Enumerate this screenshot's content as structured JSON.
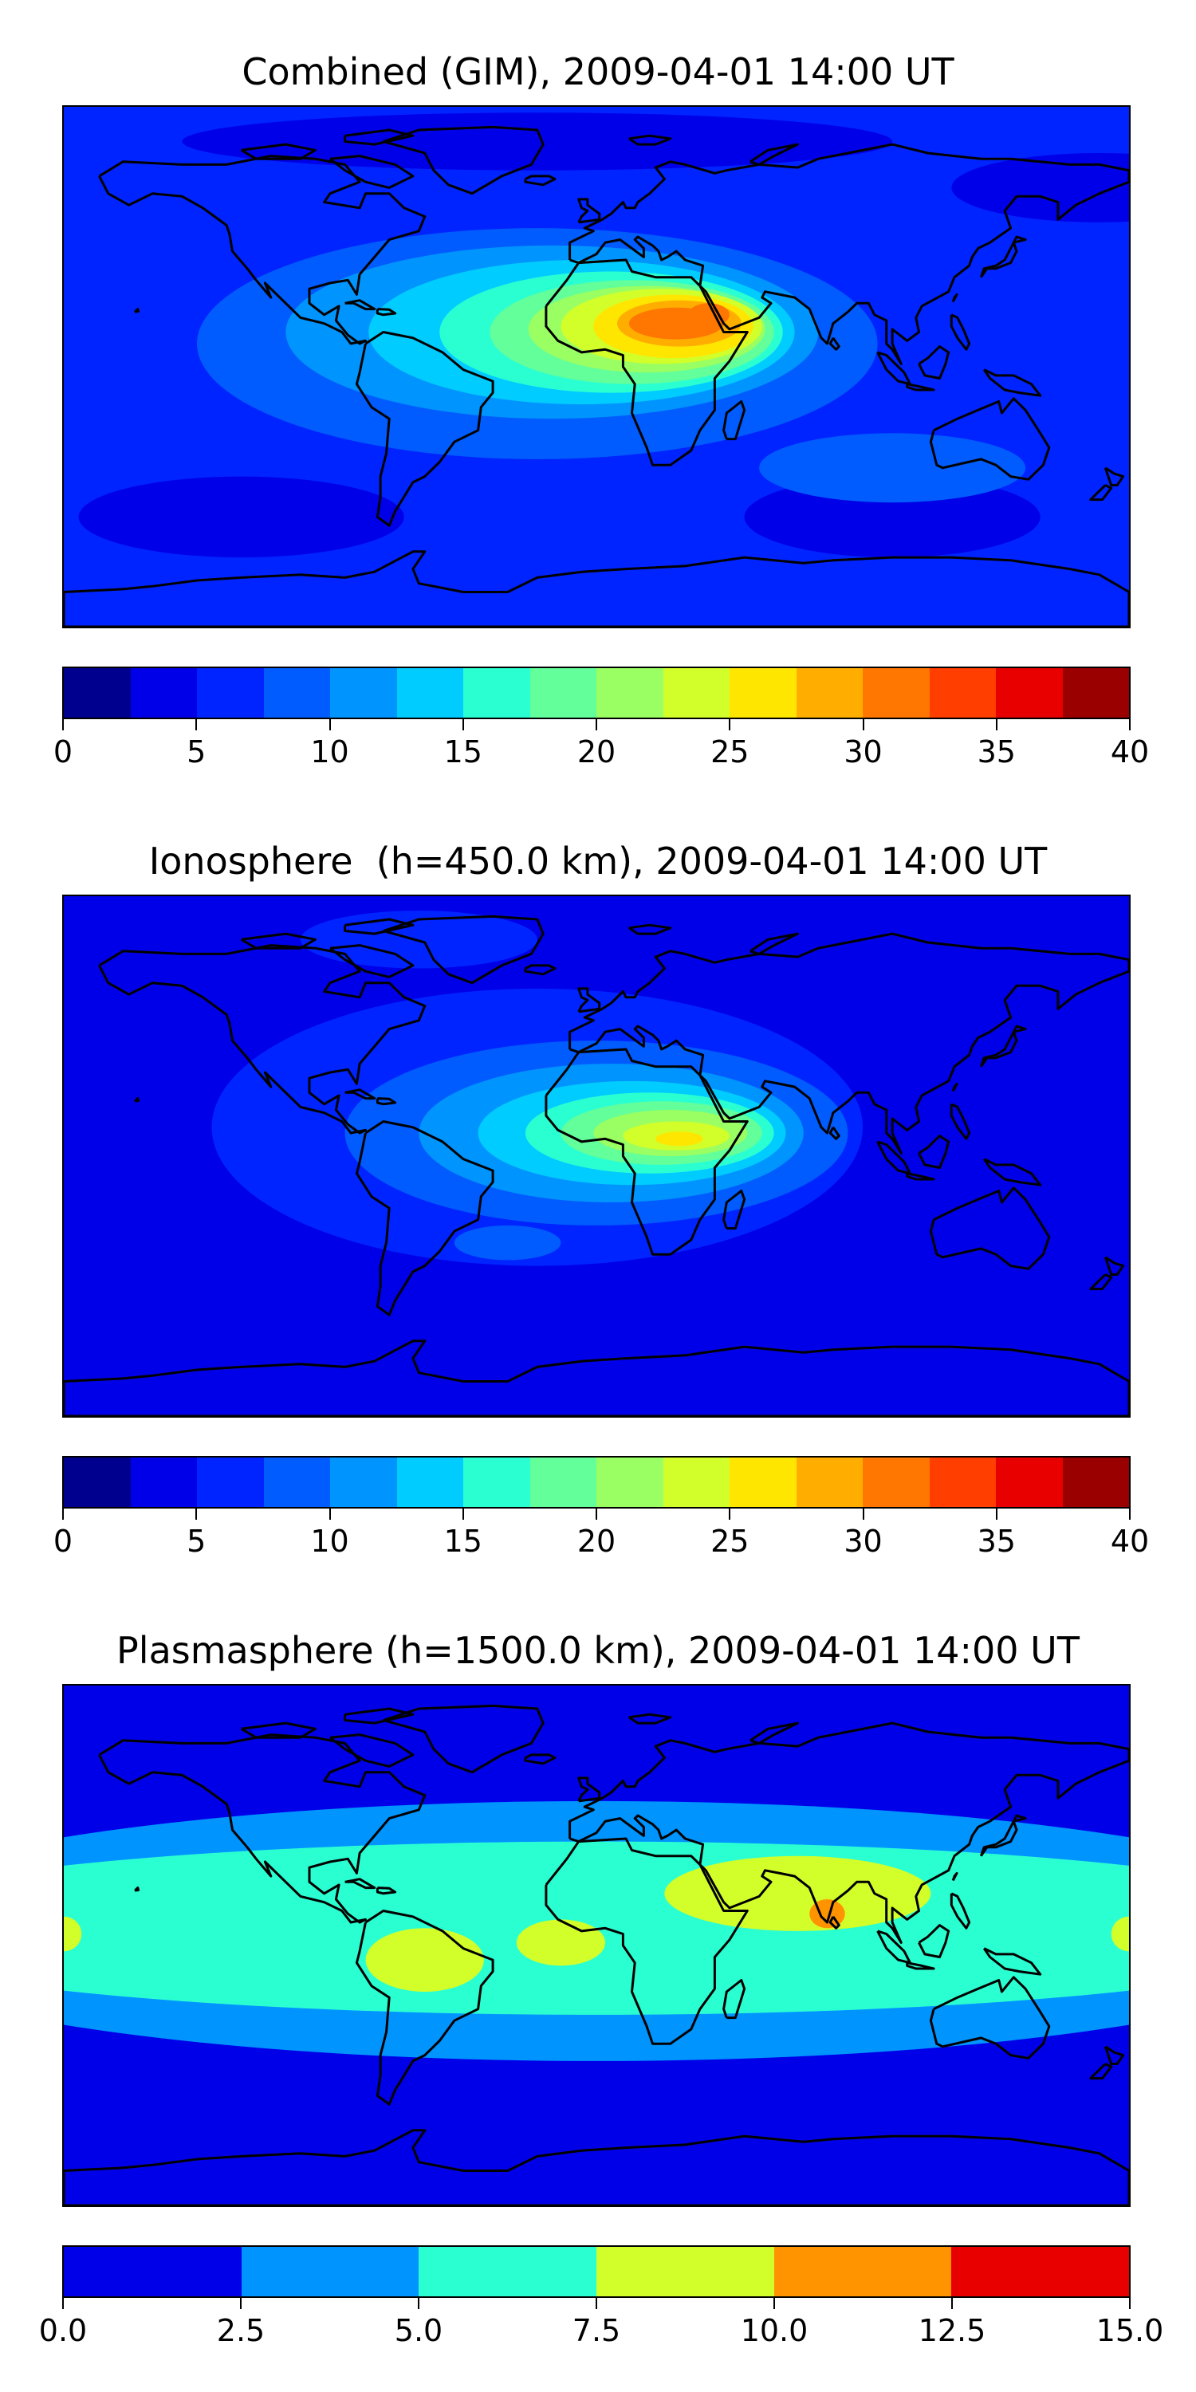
{
  "panels": [
    {
      "title": "Combined (GIM), 2009-04-01 14:00 UT",
      "colorbar": {
        "colors": [
          "#00008f",
          "#0000e8",
          "#0024ff",
          "#005cff",
          "#0094ff",
          "#00ccff",
          "#2affd2",
          "#62ff9a",
          "#9aff62",
          "#d2ff2a",
          "#ffe600",
          "#ffae00",
          "#ff7600",
          "#ff3e00",
          "#e80000",
          "#9a0000"
        ],
        "ticks": [
          "0",
          "5",
          "10",
          "15",
          "20",
          "25",
          "30",
          "35",
          "40"
        ]
      },
      "field": {
        "background": "#0024ff",
        "layers": [
          {
            "color": "#0000e8",
            "blobs": [
              [
                -120,
                -52,
                55,
                14
              ],
              [
                100,
                -52,
                50,
                14
              ],
              [
                -20,
                78,
                120,
                10
              ],
              [
                170,
                62,
                50,
                12
              ]
            ]
          },
          {
            "color": "#005cff",
            "blobs": [
              [
                -20,
                8,
                115,
                40
              ],
              [
                100,
                -35,
                45,
                12
              ]
            ]
          },
          {
            "color": "#0094ff",
            "blobs": [
              [
                -15,
                12,
                90,
                30
              ]
            ]
          },
          {
            "color": "#00ccff",
            "blobs": [
              [
                -5,
                12,
                72,
                25
              ]
            ]
          },
          {
            "color": "#2affd2",
            "blobs": [
              [
                5,
                12,
                58,
                21
              ]
            ]
          },
          {
            "color": "#62ff9a",
            "blobs": [
              [
                12,
                12,
                48,
                18
              ]
            ]
          },
          {
            "color": "#9aff62",
            "blobs": [
              [
                17,
                13,
                40,
                15
              ]
            ]
          },
          {
            "color": "#d2ff2a",
            "blobs": [
              [
                22,
                14,
                34,
                13
              ]
            ]
          },
          {
            "color": "#ffe600",
            "blobs": [
              [
                26,
                14,
                27,
                11
              ]
            ]
          },
          {
            "color": "#ffae00",
            "blobs": [
              [
                28,
                15,
                21,
                8
              ]
            ]
          },
          {
            "color": "#ff7600",
            "blobs": [
              [
                27,
                15,
                16,
                5.5
              ],
              [
                38,
                18,
                7,
                4
              ]
            ]
          }
        ]
      }
    },
    {
      "title": "Ionosphere  (h=450.0 km), 2009-04-01 14:00 UT",
      "colorbar": {
        "colors": [
          "#00008f",
          "#0000e8",
          "#0024ff",
          "#005cff",
          "#0094ff",
          "#00ccff",
          "#2affd2",
          "#62ff9a",
          "#9aff62",
          "#d2ff2a",
          "#ffe600",
          "#ffae00",
          "#ff7600",
          "#ff3e00",
          "#e80000",
          "#9a0000"
        ],
        "ticks": [
          "0",
          "5",
          "10",
          "15",
          "20",
          "25",
          "30",
          "35",
          "40"
        ]
      },
      "field": {
        "background": "#0000e8",
        "layers": [
          {
            "color": "#0024ff",
            "blobs": [
              [
                -20,
                10,
                110,
                48
              ],
              [
                -60,
                75,
                40,
                10
              ]
            ]
          },
          {
            "color": "#005cff",
            "blobs": [
              [
                0,
                8,
                85,
                32
              ],
              [
                -30,
                -30,
                18,
                6
              ]
            ]
          },
          {
            "color": "#0094ff",
            "blobs": [
              [
                5,
                8,
                65,
                24
              ]
            ]
          },
          {
            "color": "#00ccff",
            "blobs": [
              [
                12,
                8,
                52,
                18
              ]
            ]
          },
          {
            "color": "#2affd2",
            "blobs": [
              [
                18,
                8,
                42,
                14
              ]
            ]
          },
          {
            "color": "#62ff9a",
            "blobs": [
              [
                22,
                8,
                34,
                11
              ]
            ]
          },
          {
            "color": "#9aff62",
            "blobs": [
              [
                25,
                8,
                26,
                8
              ]
            ]
          },
          {
            "color": "#d2ff2a",
            "blobs": [
              [
                27,
                7,
                18,
                5
              ]
            ]
          },
          {
            "color": "#ffe600",
            "blobs": [
              [
                28,
                6,
                8,
                2.5
              ]
            ]
          }
        ]
      }
    },
    {
      "title": "Plasmasphere (h=1500.0 km), 2009-04-01 14:00 UT",
      "colorbar": {
        "colors": [
          "#0000e8",
          "#0094ff",
          "#2affd2",
          "#d2ff2a",
          "#ff9400",
          "#e80000"
        ],
        "ticks": [
          "0.0",
          "2.5",
          "5.0",
          "7.5",
          "10.0",
          "12.5",
          "15.0"
        ]
      },
      "field": {
        "background": "#0000e8",
        "layers": [
          {
            "color": "#0094ff",
            "blobs": [
              [
                0,
                5,
                260,
                45
              ]
            ]
          },
          {
            "color": "#2affd2",
            "blobs": [
              [
                0,
                6,
                260,
                30
              ]
            ]
          },
          {
            "color": "#d2ff2a",
            "blobs": [
              [
                -58,
                -5,
                20,
                11
              ],
              [
                -12,
                1,
                15,
                8
              ],
              [
                68,
                18,
                45,
                13
              ],
              [
                -180,
                4,
                6,
                6
              ],
              [
                180,
                4,
                6,
                6
              ]
            ]
          },
          {
            "color": "#ff9400",
            "blobs": [
              [
                78,
                11,
                6,
                5
              ]
            ]
          }
        ]
      }
    }
  ]
}
